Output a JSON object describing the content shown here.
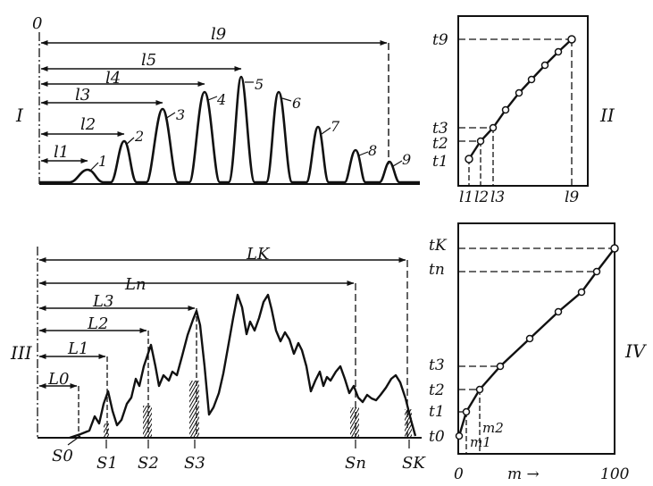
{
  "panel_I": {
    "roman": "I",
    "origin_label": "0",
    "dims": [
      "l1",
      "l2",
      "l3",
      "l4",
      "l5",
      "l9"
    ],
    "peaks": [
      "1",
      "2",
      "3",
      "4",
      "5",
      "6",
      "7",
      "8",
      "9"
    ]
  },
  "panel_II": {
    "roman": "II",
    "y_labels": [
      "t9",
      "t3",
      "t2",
      "t1"
    ],
    "x_labels": [
      "l1",
      "l2",
      "l3",
      "l9"
    ]
  },
  "panel_III": {
    "roman": "III",
    "dims": [
      "L0",
      "L1",
      "L2",
      "L3",
      "Ln",
      "LK"
    ],
    "s_labels": [
      "S0",
      "S1",
      "S2",
      "S3",
      "Sn",
      "SK"
    ]
  },
  "panel_IV": {
    "roman": "IV",
    "y_labels": [
      "tK",
      "tn",
      "t3",
      "t2",
      "t1",
      "t0"
    ],
    "point_labels": [
      "m1",
      "m2"
    ],
    "x_ticks": [
      "0",
      "100"
    ],
    "x_axis_label": "m →"
  }
}
